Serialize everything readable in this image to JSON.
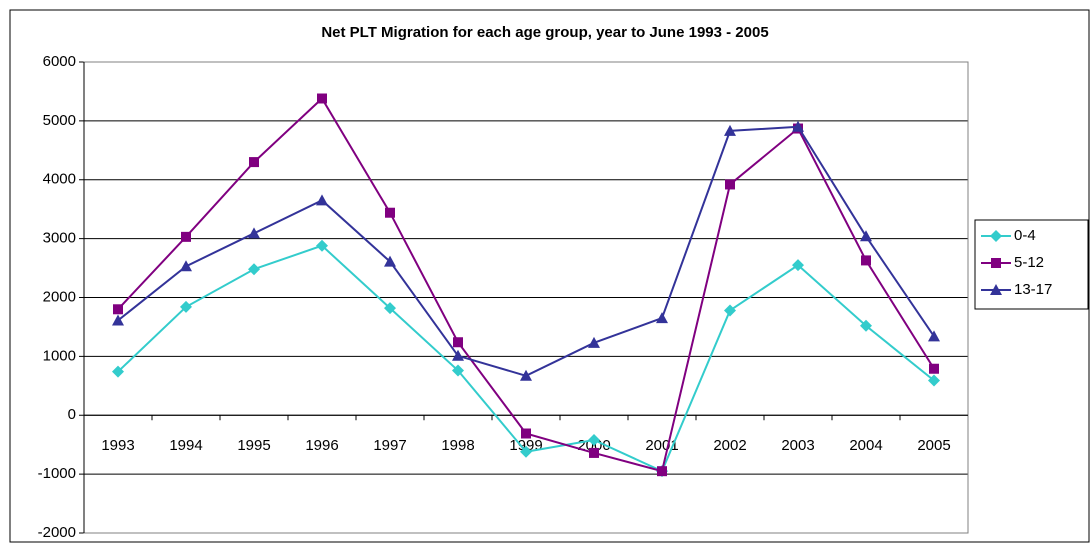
{
  "chart_data": {
    "type": "line",
    "title": "Net PLT Migration for each age group, year to June 1993 - 2005",
    "categories": [
      "1993",
      "1994",
      "1995",
      "1996",
      "1997",
      "1998",
      "1999",
      "2000",
      "2001",
      "2002",
      "2003",
      "2004",
      "2005"
    ],
    "series": [
      {
        "name": "0-4",
        "color": "#33cccc",
        "marker": "diamond",
        "values": [
          740,
          1840,
          2480,
          2880,
          1820,
          760,
          -620,
          -420,
          -950,
          1780,
          2550,
          1520,
          590
        ]
      },
      {
        "name": "5-12",
        "color": "#800080",
        "marker": "square",
        "values": [
          1800,
          3030,
          4300,
          5380,
          3440,
          1240,
          -310,
          -640,
          -950,
          3920,
          4870,
          2630,
          790
        ]
      },
      {
        "name": "13-17",
        "color": "#333399",
        "marker": "triangle",
        "values": [
          1610,
          2530,
          3090,
          3650,
          2610,
          1010,
          670,
          1230,
          1650,
          4830,
          4900,
          3040,
          1340
        ]
      }
    ],
    "ylim": [
      -2000,
      6000
    ],
    "yticks": [
      -2000,
      -1000,
      0,
      1000,
      2000,
      3000,
      4000,
      5000,
      6000
    ],
    "grid": true,
    "legend": "right"
  }
}
